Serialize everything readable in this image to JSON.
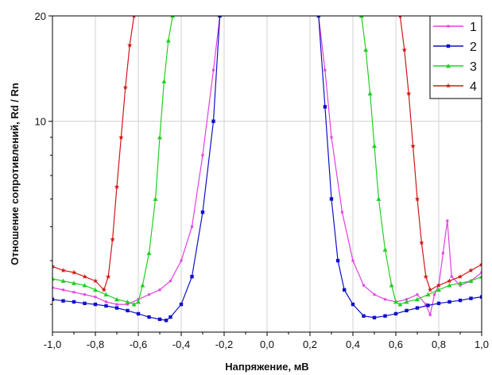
{
  "chart_data": {
    "type": "line",
    "title": "",
    "xlabel": "Напряжение, мВ",
    "ylabel": "Отношение сопротивлений, Rd / Rn",
    "xlim": [
      -1.0,
      1.0
    ],
    "ylim": [
      2.5,
      20
    ],
    "yscale": "log",
    "grid": true,
    "legend_position": "top-right",
    "x_ticks": [
      -1.0,
      -0.8,
      -0.6,
      -0.4,
      -0.2,
      0.0,
      0.2,
      0.4,
      0.6,
      0.8,
      1.0
    ],
    "x_tick_labels": [
      "-1,0",
      "-0,8",
      "-0,6",
      "-0,4",
      "-0,2",
      "0,0",
      "0,2",
      "0,4",
      "0,6",
      "0,8",
      "1,0"
    ],
    "y_ticks": [
      10,
      20
    ],
    "y_tick_labels": [
      "10",
      "20"
    ],
    "series": [
      {
        "name": "1",
        "color": "#e040e0",
        "marker": "square-small",
        "x": [
          -1.0,
          -0.95,
          -0.9,
          -0.85,
          -0.8,
          -0.75,
          -0.7,
          -0.65,
          -0.6,
          -0.55,
          -0.5,
          -0.45,
          -0.4,
          -0.35,
          -0.3,
          -0.25,
          -0.22,
          0.24,
          0.27,
          0.3,
          0.35,
          0.4,
          0.45,
          0.5,
          0.55,
          0.6,
          0.65,
          0.7,
          0.74,
          0.76,
          0.78,
          0.8,
          0.82,
          0.84,
          0.86,
          0.9,
          0.95,
          1.0
        ],
        "y": [
          3.35,
          3.3,
          3.25,
          3.2,
          3.15,
          3.05,
          3.0,
          3.0,
          3.1,
          3.2,
          3.3,
          3.5,
          4.0,
          5.0,
          8.0,
          14.0,
          20.0,
          20.0,
          14.0,
          9.0,
          5.5,
          4.0,
          3.4,
          3.2,
          3.1,
          3.05,
          3.1,
          3.2,
          3.0,
          2.8,
          3.2,
          3.4,
          4.2,
          5.2,
          3.6,
          3.4,
          3.5,
          3.7
        ]
      },
      {
        "name": "2",
        "color": "#1010c8",
        "marker": "square",
        "x": [
          -1.0,
          -0.95,
          -0.9,
          -0.85,
          -0.8,
          -0.75,
          -0.7,
          -0.65,
          -0.6,
          -0.55,
          -0.5,
          -0.47,
          -0.45,
          -0.4,
          -0.35,
          -0.3,
          -0.25,
          -0.22,
          0.24,
          0.27,
          0.3,
          0.33,
          0.36,
          0.4,
          0.45,
          0.5,
          0.55,
          0.6,
          0.65,
          0.7,
          0.75,
          0.8,
          0.85,
          0.9,
          0.95,
          1.0
        ],
        "y": [
          3.1,
          3.07,
          3.05,
          3.02,
          3.0,
          2.97,
          2.93,
          2.88,
          2.82,
          2.76,
          2.72,
          2.7,
          2.76,
          3.0,
          3.6,
          5.5,
          10.0,
          20.0,
          20.0,
          11.0,
          6.0,
          4.0,
          3.3,
          3.0,
          2.78,
          2.75,
          2.78,
          2.82,
          2.88,
          2.93,
          2.98,
          3.02,
          3.05,
          3.08,
          3.12,
          3.15
        ]
      },
      {
        "name": "3",
        "color": "#20d020",
        "marker": "triangle",
        "x": [
          -1.0,
          -0.95,
          -0.9,
          -0.85,
          -0.8,
          -0.75,
          -0.7,
          -0.65,
          -0.62,
          -0.6,
          -0.58,
          -0.55,
          -0.52,
          -0.5,
          -0.48,
          -0.46,
          -0.44,
          0.44,
          0.46,
          0.48,
          0.5,
          0.52,
          0.55,
          0.58,
          0.6,
          0.62,
          0.65,
          0.7,
          0.75,
          0.8,
          0.85,
          0.9,
          0.95,
          1.0
        ],
        "y": [
          3.55,
          3.5,
          3.45,
          3.4,
          3.3,
          3.2,
          3.1,
          3.05,
          3.0,
          3.05,
          3.4,
          4.2,
          6.0,
          9.0,
          13.0,
          17.0,
          20.0,
          20.0,
          16.0,
          12.0,
          8.5,
          6.0,
          4.3,
          3.4,
          3.05,
          3.0,
          3.05,
          3.1,
          3.2,
          3.3,
          3.4,
          3.45,
          3.5,
          3.6
        ]
      },
      {
        "name": "4",
        "color": "#d01818",
        "marker": "star",
        "x": [
          -1.0,
          -0.95,
          -0.9,
          -0.85,
          -0.8,
          -0.76,
          -0.74,
          -0.72,
          -0.7,
          -0.68,
          -0.66,
          -0.64,
          -0.62,
          0.62,
          0.64,
          0.66,
          0.68,
          0.7,
          0.72,
          0.74,
          0.76,
          0.8,
          0.85,
          0.9,
          0.95,
          1.0
        ],
        "y": [
          3.85,
          3.75,
          3.7,
          3.6,
          3.5,
          3.3,
          3.6,
          4.6,
          6.5,
          9.0,
          12.5,
          16.5,
          20.0,
          20.0,
          16.0,
          12.0,
          8.5,
          6.0,
          4.5,
          3.6,
          3.3,
          3.4,
          3.5,
          3.6,
          3.75,
          3.9
        ]
      }
    ]
  }
}
